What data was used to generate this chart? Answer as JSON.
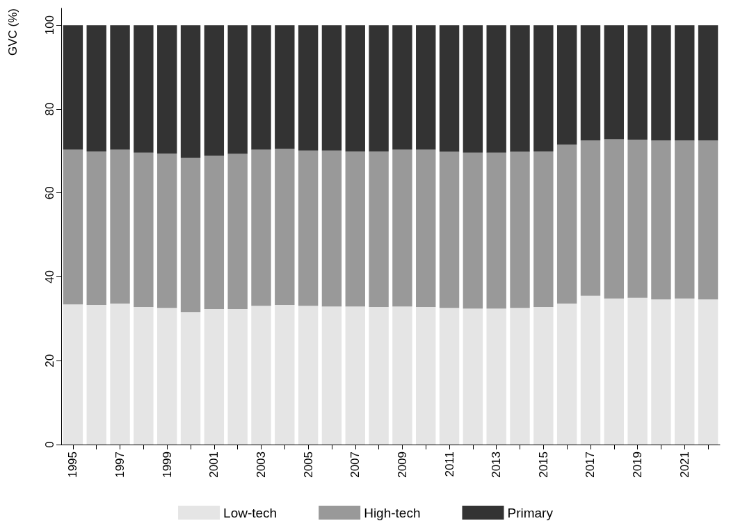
{
  "chart_data": {
    "type": "bar",
    "stacked": true,
    "ylabel": "GVC (%)",
    "categories": [
      "1995",
      null,
      "1997",
      null,
      "1999",
      null,
      "2001",
      null,
      "2003",
      null,
      "2005",
      null,
      "2007",
      null,
      "2009",
      null,
      "2011",
      null,
      "2013",
      null,
      "2015",
      null,
      "2017",
      null,
      "2019",
      null,
      "2021",
      null
    ],
    "series": [
      {
        "name": "Low-tech",
        "color": "#e5e5e5",
        "values": [
          33.4,
          33.3,
          33.6,
          32.8,
          32.6,
          31.6,
          32.3,
          32.3,
          33.1,
          33.3,
          33.1,
          32.9,
          32.9,
          32.8,
          32.9,
          32.8,
          32.6,
          32.4,
          32.4,
          32.6,
          32.8,
          33.6,
          35.5,
          34.8,
          35.0,
          34.6,
          34.8,
          34.6
        ]
      },
      {
        "name": "High-tech",
        "color": "#999999",
        "values": [
          36.9,
          36.6,
          36.7,
          36.8,
          36.8,
          36.8,
          36.6,
          37.0,
          37.2,
          37.2,
          37.0,
          37.2,
          37.0,
          37.1,
          37.4,
          37.5,
          37.2,
          37.2,
          37.2,
          37.2,
          37.1,
          37.9,
          37.0,
          38.0,
          37.7,
          37.9,
          37.7,
          37.9
        ]
      },
      {
        "name": "Primary",
        "color": "#333333",
        "values": [
          29.7,
          30.1,
          29.7,
          30.4,
          30.6,
          31.6,
          31.1,
          30.7,
          29.7,
          29.5,
          29.9,
          29.9,
          30.1,
          30.1,
          29.7,
          29.7,
          30.2,
          30.4,
          30.4,
          30.2,
          30.1,
          28.5,
          27.5,
          27.2,
          27.3,
          27.5,
          27.5,
          27.5
        ]
      }
    ],
    "ylim": [
      0,
      104
    ],
    "yticks": [
      0,
      20,
      40,
      60,
      80,
      100
    ],
    "grid": false,
    "legend": "bottom"
  }
}
